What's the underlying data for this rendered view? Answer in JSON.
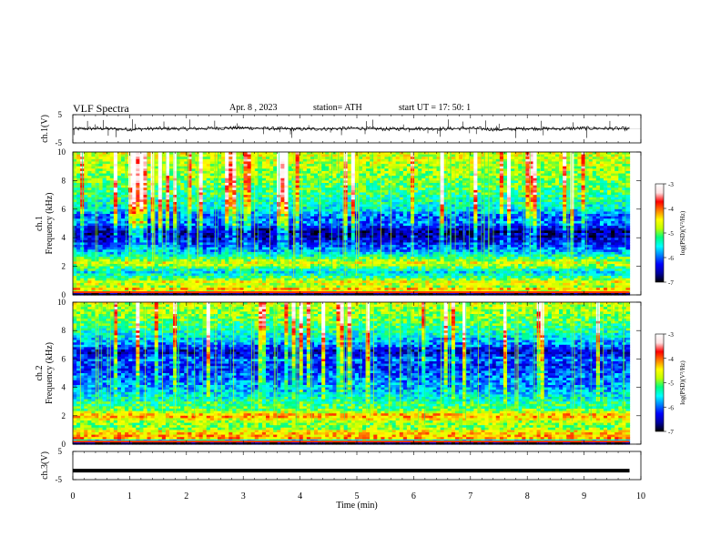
{
  "header": {
    "title": "VLF  Spectra",
    "date": "Apr. 8  , 2023",
    "station": "station= ATH",
    "start_ut": "start  UT  =   17: 50: 1"
  },
  "colors": {
    "trace": "#000000",
    "colormap": [
      "#000000",
      "#0000a0",
      "#0000ff",
      "#0080ff",
      "#00ffff",
      "#00ff80",
      "#c0ff00",
      "#ffff00",
      "#ff8000",
      "#ff0000",
      "#ffe0e0",
      "#ffffff"
    ]
  },
  "chart_data": [
    {
      "type": "line",
      "ylabel": "ch.1(V)",
      "yticks": [
        "5",
        "-5"
      ],
      "ylim": [
        -5,
        5
      ],
      "x": [
        0,
        0.5,
        1,
        1.5,
        2,
        2.5,
        3,
        3.5,
        4,
        4.5,
        5,
        5.5,
        6,
        6.5,
        7,
        7.5,
        8,
        8.5,
        9,
        9.5,
        9.8
      ],
      "values": [
        0,
        0.1,
        -0.2,
        0.1,
        0.0,
        0.2,
        0.3,
        0.1,
        -0.1,
        0.0,
        0.2,
        -0.1,
        0.1,
        0.0,
        0.2,
        -0.3,
        0.1,
        0.0,
        0.2,
        0.1,
        0.0
      ]
    },
    {
      "type": "heatmap",
      "ylabel": "ch.1\nFrequency (kHz)",
      "yticks": [
        "0",
        "2",
        "4",
        "6",
        "8",
        "10"
      ],
      "ylim": [
        0,
        10
      ],
      "colorbar": {
        "label": "log(PSD)(V²/Hz)",
        "ticks": [
          "-3",
          "-4",
          "-5",
          "-6",
          "-7"
        ],
        "range": [
          -7,
          -3
        ]
      },
      "profile": [
        {
          "f": 0.1,
          "level": 0.08
        },
        {
          "f": 0.3,
          "level": 0.75
        },
        {
          "f": 0.6,
          "level": 0.55
        },
        {
          "f": 0.9,
          "level": 0.62
        },
        {
          "f": 1.2,
          "level": 0.45
        },
        {
          "f": 1.6,
          "level": 0.36
        },
        {
          "f": 2.0,
          "level": 0.5
        },
        {
          "f": 2.2,
          "level": 0.62
        },
        {
          "f": 2.6,
          "level": 0.45
        },
        {
          "f": 3.0,
          "level": 0.32
        },
        {
          "f": 3.5,
          "level": 0.22
        },
        {
          "f": 4.0,
          "level": 0.12
        },
        {
          "f": 4.5,
          "level": 0.1
        },
        {
          "f": 5.0,
          "level": 0.28
        },
        {
          "f": 5.5,
          "level": 0.24
        },
        {
          "f": 6.0,
          "level": 0.38
        },
        {
          "f": 7.0,
          "level": 0.44
        },
        {
          "f": 8.0,
          "level": 0.5
        },
        {
          "f": 9.0,
          "level": 0.56
        },
        {
          "f": 10.0,
          "level": 0.6
        }
      ]
    },
    {
      "type": "heatmap",
      "ylabel": "ch.2\nFrequency (kHz)",
      "yticks": [
        "0",
        "2",
        "4",
        "6",
        "8",
        "10"
      ],
      "ylim": [
        0,
        10
      ],
      "colorbar": {
        "label": "log(PSD)(V²/Hz)",
        "ticks": [
          "-3",
          "-4",
          "-5",
          "-6",
          "-7"
        ],
        "range": [
          -7,
          -3
        ]
      },
      "profile": [
        {
          "f": 0.1,
          "level": 0.06
        },
        {
          "f": 0.4,
          "level": 0.7
        },
        {
          "f": 0.8,
          "level": 0.66
        },
        {
          "f": 1.2,
          "level": 0.5
        },
        {
          "f": 1.6,
          "level": 0.55
        },
        {
          "f": 2.0,
          "level": 0.72
        },
        {
          "f": 2.4,
          "level": 0.5
        },
        {
          "f": 3.0,
          "level": 0.42
        },
        {
          "f": 3.5,
          "level": 0.36
        },
        {
          "f": 4.0,
          "level": 0.3
        },
        {
          "f": 4.5,
          "level": 0.28
        },
        {
          "f": 5.0,
          "level": 0.24
        },
        {
          "f": 5.5,
          "level": 0.2
        },
        {
          "f": 6.0,
          "level": 0.26
        },
        {
          "f": 6.5,
          "level": 0.12
        },
        {
          "f": 7.0,
          "level": 0.28
        },
        {
          "f": 8.0,
          "level": 0.42
        },
        {
          "f": 9.0,
          "level": 0.52
        },
        {
          "f": 10.0,
          "level": 0.58
        }
      ]
    },
    {
      "type": "line",
      "ylabel": "ch.3(V)",
      "yticks": [
        "5",
        "-5"
      ],
      "ylim": [
        -5,
        5
      ],
      "x": [
        0,
        9.8
      ],
      "values": [
        -1.8,
        -1.8
      ]
    }
  ],
  "xaxis": {
    "label": "Time  (min)",
    "ticks": [
      "0",
      "1",
      "2",
      "3",
      "4",
      "5",
      "6",
      "7",
      "8",
      "9",
      "10"
    ],
    "xlim": [
      0,
      10
    ]
  }
}
